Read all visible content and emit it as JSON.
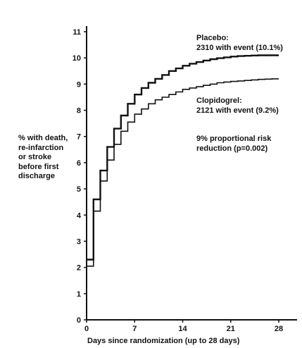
{
  "chart_data": {
    "type": "line",
    "title": "",
    "xlabel": "Days since randomization (up to 28 days)",
    "ylabel_lines": [
      "% with death,",
      "re-infarction",
      "or stroke",
      "before first",
      "discharge"
    ],
    "xlim": [
      0,
      28
    ],
    "ylim": [
      0,
      11
    ],
    "xticks": [
      0,
      7,
      14,
      21,
      28
    ],
    "yticks": [
      0,
      1,
      2,
      3,
      4,
      5,
      6,
      7,
      8,
      9,
      10,
      11
    ],
    "grid": false,
    "legend": "none",
    "series": [
      {
        "name": "Placebo",
        "color": "#111111",
        "x": [
          0,
          1,
          2,
          3,
          4,
          5,
          6,
          7,
          8,
          9,
          10,
          11,
          12,
          13,
          14,
          15,
          16,
          17,
          18,
          19,
          20,
          21,
          22,
          23,
          24,
          25,
          26,
          27,
          28
        ],
        "y": [
          2.3,
          4.6,
          5.7,
          6.6,
          7.3,
          7.8,
          8.25,
          8.6,
          8.85,
          9.05,
          9.2,
          9.35,
          9.5,
          9.6,
          9.7,
          9.78,
          9.84,
          9.9,
          9.95,
          9.99,
          10.02,
          10.05,
          10.07,
          10.08,
          10.09,
          10.1,
          10.1,
          10.1,
          10.1
        ]
      },
      {
        "name": "Clopidogrel",
        "color": "#111111",
        "x": [
          0,
          1,
          2,
          3,
          4,
          5,
          6,
          7,
          8,
          9,
          10,
          11,
          12,
          13,
          14,
          15,
          16,
          17,
          18,
          19,
          20,
          21,
          22,
          23,
          24,
          25,
          26,
          27,
          28
        ],
        "y": [
          2.05,
          4.15,
          5.3,
          6.1,
          6.7,
          7.2,
          7.55,
          7.85,
          8.05,
          8.25,
          8.4,
          8.5,
          8.6,
          8.7,
          8.8,
          8.85,
          8.9,
          8.95,
          9.0,
          9.05,
          9.08,
          9.1,
          9.12,
          9.14,
          9.16,
          9.18,
          9.19,
          9.2,
          9.2
        ]
      }
    ],
    "annotations": {
      "placebo_name": "Placebo:",
      "placebo_events": "2310 with event (10.1%)",
      "clopidogrel_name": "Clopidogrel:",
      "clopidogrel_events": "2121 with event (9.2%)",
      "reduction_line1": "9% proportional risk",
      "reduction_line2": "reduction (p=0.002)"
    }
  }
}
